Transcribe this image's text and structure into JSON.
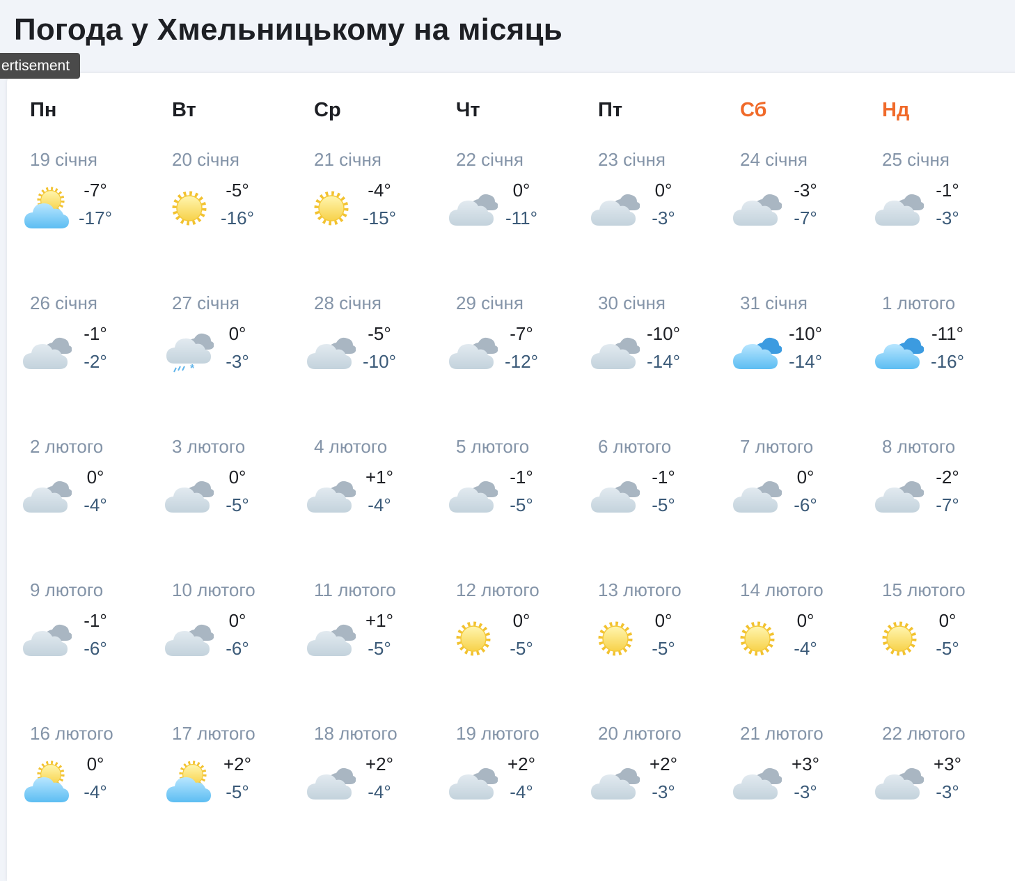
{
  "title": "Погода у Хмельницькому на місяць",
  "ad_label": "ertisement",
  "weekdays": [
    "Пн",
    "Вт",
    "Ср",
    "Чт",
    "Пт",
    "Сб",
    "Нд"
  ],
  "days": [
    {
      "date": "19 січня",
      "icon": "partly-sunny",
      "high": "-7°",
      "low": "-17°"
    },
    {
      "date": "20 січня",
      "icon": "sun",
      "high": "-5°",
      "low": "-16°"
    },
    {
      "date": "21 січня",
      "icon": "sun",
      "high": "-4°",
      "low": "-15°"
    },
    {
      "date": "22 січня",
      "icon": "cloudy",
      "high": "0°",
      "low": "-11°"
    },
    {
      "date": "23 січня",
      "icon": "cloudy",
      "high": "0°",
      "low": "-3°"
    },
    {
      "date": "24 січня",
      "icon": "cloudy",
      "high": "-3°",
      "low": "-7°"
    },
    {
      "date": "25 січня",
      "icon": "cloudy",
      "high": "-1°",
      "low": "-3°"
    },
    {
      "date": "26 січня",
      "icon": "cloudy",
      "high": "-1°",
      "low": "-2°"
    },
    {
      "date": "27 січня",
      "icon": "sleet",
      "high": "0°",
      "low": "-3°"
    },
    {
      "date": "28 січня",
      "icon": "cloudy",
      "high": "-5°",
      "low": "-10°"
    },
    {
      "date": "29 січня",
      "icon": "cloudy",
      "high": "-7°",
      "low": "-12°"
    },
    {
      "date": "30 січня",
      "icon": "cloudy",
      "high": "-10°",
      "low": "-14°"
    },
    {
      "date": "31 січня",
      "icon": "blue-cloud",
      "high": "-10°",
      "low": "-14°"
    },
    {
      "date": "1 лютого",
      "icon": "blue-cloud",
      "high": "-11°",
      "low": "-16°"
    },
    {
      "date": "2 лютого",
      "icon": "cloudy",
      "high": "0°",
      "low": "-4°"
    },
    {
      "date": "3 лютого",
      "icon": "cloudy",
      "high": "0°",
      "low": "-5°"
    },
    {
      "date": "4 лютого",
      "icon": "cloudy",
      "high": "+1°",
      "low": "-4°"
    },
    {
      "date": "5 лютого",
      "icon": "cloudy",
      "high": "-1°",
      "low": "-5°"
    },
    {
      "date": "6 лютого",
      "icon": "cloudy",
      "high": "-1°",
      "low": "-5°"
    },
    {
      "date": "7 лютого",
      "icon": "cloudy",
      "high": "0°",
      "low": "-6°"
    },
    {
      "date": "8 лютого",
      "icon": "cloudy",
      "high": "-2°",
      "low": "-7°"
    },
    {
      "date": "9 лютого",
      "icon": "cloudy",
      "high": "-1°",
      "low": "-6°"
    },
    {
      "date": "10 лютого",
      "icon": "cloudy",
      "high": "0°",
      "low": "-6°"
    },
    {
      "date": "11 лютого",
      "icon": "cloudy",
      "high": "+1°",
      "low": "-5°"
    },
    {
      "date": "12 лютого",
      "icon": "sun",
      "high": "0°",
      "low": "-5°"
    },
    {
      "date": "13 лютого",
      "icon": "sun",
      "high": "0°",
      "low": "-5°"
    },
    {
      "date": "14 лютого",
      "icon": "sun",
      "high": "0°",
      "low": "-4°"
    },
    {
      "date": "15 лютого",
      "icon": "sun",
      "high": "0°",
      "low": "-5°"
    },
    {
      "date": "16 лютого",
      "icon": "partly-sunny",
      "high": "0°",
      "low": "-4°"
    },
    {
      "date": "17 лютого",
      "icon": "partly-sunny",
      "high": "+2°",
      "low": "-5°"
    },
    {
      "date": "18 лютого",
      "icon": "cloudy",
      "high": "+2°",
      "low": "-4°"
    },
    {
      "date": "19 лютого",
      "icon": "cloudy",
      "high": "+2°",
      "low": "-4°"
    },
    {
      "date": "20 лютого",
      "icon": "cloudy",
      "high": "+2°",
      "low": "-3°"
    },
    {
      "date": "21 лютого",
      "icon": "cloudy",
      "high": "+3°",
      "low": "-3°"
    },
    {
      "date": "22 лютого",
      "icon": "cloudy",
      "high": "+3°",
      "low": "-3°"
    }
  ]
}
